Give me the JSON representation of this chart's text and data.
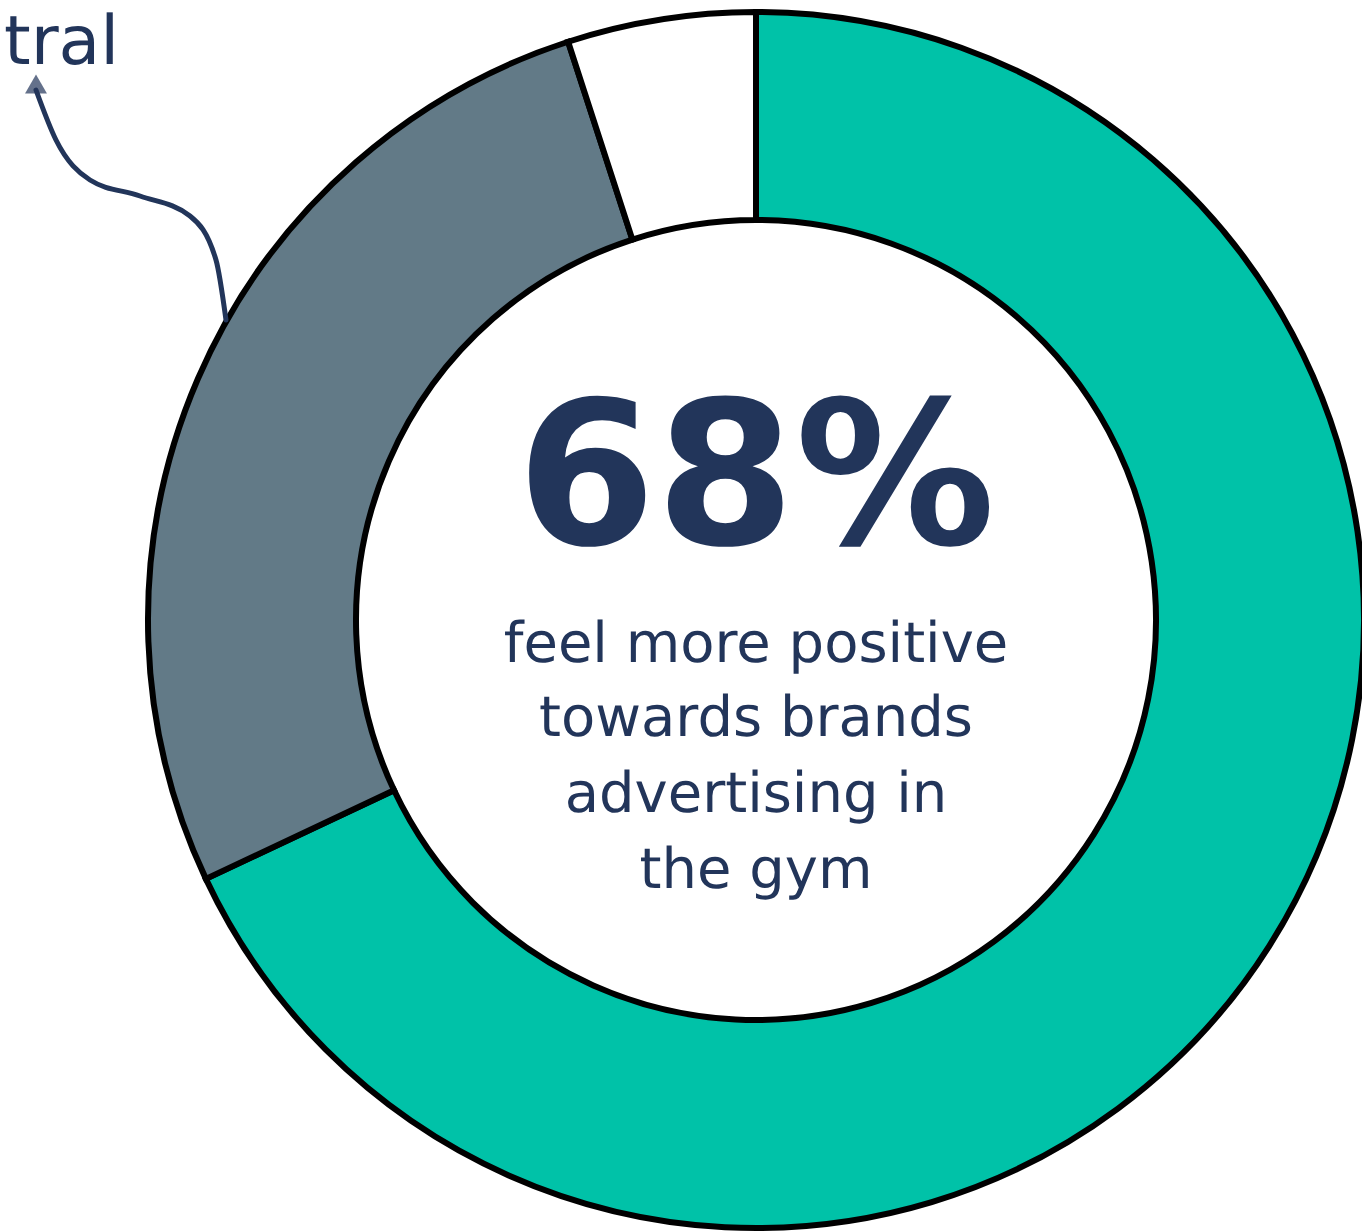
{
  "chart_data": {
    "type": "donut",
    "categories": [
      null,
      null,
      null
    ],
    "values": [
      68,
      27,
      5
    ],
    "colors": [
      "#00c2a8",
      "#627a87",
      "#ffffff"
    ],
    "annotations": [
      "68%",
      "feel more positive",
      "towards brands",
      "advertising in",
      "the gym",
      "tral"
    ]
  }
}
